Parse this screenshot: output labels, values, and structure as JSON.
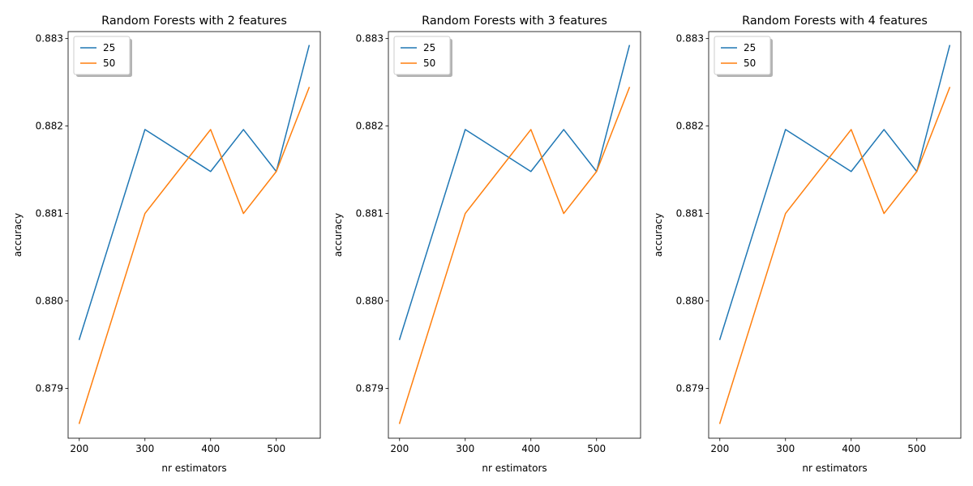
{
  "chart_data": [
    {
      "type": "line",
      "title": "Random Forests with 2 features",
      "xlabel": "nr estimators",
      "ylabel": "accuracy",
      "x": [
        200,
        300,
        400,
        450,
        500,
        550
      ],
      "xticks": [
        200,
        300,
        400,
        500
      ],
      "xtick_labels": [
        "200",
        "300",
        "400",
        "500"
      ],
      "yticks": [
        0.879,
        0.88,
        0.881,
        0.882,
        0.883
      ],
      "ytick_labels": [
        "0.879",
        "0.880",
        "0.881",
        "0.882",
        "0.883"
      ],
      "xlim": [
        183,
        567
      ],
      "ylim": [
        0.87843,
        0.88308
      ],
      "grid": false,
      "legend_position": "upper-left",
      "series": [
        {
          "name": "25",
          "color": "#1f77b4",
          "values": [
            0.87956,
            0.88196,
            0.88148,
            0.88196,
            0.88148,
            0.88292
          ]
        },
        {
          "name": "50",
          "color": "#ff7f0e",
          "values": [
            0.8786,
            0.881,
            0.88196,
            0.881,
            0.88148,
            0.88244
          ]
        }
      ]
    },
    {
      "type": "line",
      "title": "Random Forests with 3 features",
      "xlabel": "nr estimators",
      "ylabel": "accuracy",
      "x": [
        200,
        300,
        400,
        450,
        500,
        550
      ],
      "xticks": [
        200,
        300,
        400,
        500
      ],
      "xtick_labels": [
        "200",
        "300",
        "400",
        "500"
      ],
      "yticks": [
        0.879,
        0.88,
        0.881,
        0.882,
        0.883
      ],
      "ytick_labels": [
        "0.879",
        "0.880",
        "0.881",
        "0.882",
        "0.883"
      ],
      "xlim": [
        183,
        567
      ],
      "ylim": [
        0.87843,
        0.88308
      ],
      "grid": false,
      "legend_position": "upper-left",
      "series": [
        {
          "name": "25",
          "color": "#1f77b4",
          "values": [
            0.87956,
            0.88196,
            0.88148,
            0.88196,
            0.88148,
            0.88292
          ]
        },
        {
          "name": "50",
          "color": "#ff7f0e",
          "values": [
            0.8786,
            0.881,
            0.88196,
            0.881,
            0.88148,
            0.88244
          ]
        }
      ]
    },
    {
      "type": "line",
      "title": "Random Forests with 4 features",
      "xlabel": "nr estimators",
      "ylabel": "accuracy",
      "x": [
        200,
        300,
        400,
        450,
        500,
        550
      ],
      "xticks": [
        200,
        300,
        400,
        500
      ],
      "xtick_labels": [
        "200",
        "300",
        "400",
        "500"
      ],
      "yticks": [
        0.879,
        0.88,
        0.881,
        0.882,
        0.883
      ],
      "ytick_labels": [
        "0.879",
        "0.880",
        "0.881",
        "0.882",
        "0.883"
      ],
      "xlim": [
        183,
        567
      ],
      "ylim": [
        0.87843,
        0.88308
      ],
      "grid": false,
      "legend_position": "upper-left",
      "series": [
        {
          "name": "25",
          "color": "#1f77b4",
          "values": [
            0.87956,
            0.88196,
            0.88148,
            0.88196,
            0.88148,
            0.88292
          ]
        },
        {
          "name": "50",
          "color": "#ff7f0e",
          "values": [
            0.8786,
            0.881,
            0.88196,
            0.881,
            0.88148,
            0.88244
          ]
        }
      ]
    }
  ]
}
